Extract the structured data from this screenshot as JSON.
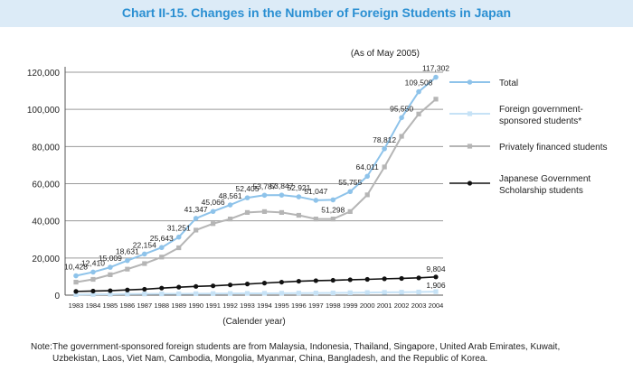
{
  "title": "Chart II-15. Changes in the Number of Foreign Students in Japan",
  "note": {
    "label": "Note:",
    "text": "The government-sponsored foreign students are from Malaysia, Indonesia, Thailand, Singapore, United Arab Emirates, Kuwait, Uzbekistan, Laos, Viet Nam, Cambodia, Mongolia, Myanmar, China, Bangladesh, and the Republic of Korea."
  },
  "colors": {
    "total": "#8ec3ea",
    "foreign_gov": "#c6e2f6",
    "private": "#b5b5b5",
    "japanese_gov": "#111111",
    "title": "#2a8fd2",
    "title_bg": "#dcebf7"
  },
  "chart_data": {
    "type": "line",
    "subtitle": "(As of May 2005)",
    "xlabel": "(Calender year)",
    "ylabel": "",
    "ylim": [
      0,
      120000
    ],
    "yticks": [
      "0",
      "20,000",
      "40,000",
      "60,000",
      "80,000",
      "100,000",
      "120,000"
    ],
    "x": [
      "1983",
      "1984",
      "1985",
      "1986",
      "1987",
      "1988",
      "1989",
      "1990",
      "1991",
      "1992",
      "1993",
      "1994",
      "1995",
      "1996",
      "1997",
      "1998",
      "1999",
      "2000",
      "2001",
      "2002",
      "2003",
      "2004"
    ],
    "grid": true,
    "legend_position": "right",
    "series": [
      {
        "key": "total",
        "name": "Total",
        "values": [
          10428,
          12410,
          15009,
          18631,
          22154,
          25643,
          31251,
          41347,
          45066,
          48561,
          52405,
          53787,
          53847,
          52921,
          51047,
          51298,
          55755,
          64011,
          78812,
          95550,
          109508,
          117302
        ],
        "labels": [
          "10,428",
          "12,410",
          "15,009",
          "18,631",
          "22,154",
          "25,643",
          "31,251",
          "41,347",
          "45,066",
          "48,561",
          "52,405",
          "53,787",
          "53,847",
          "52,921",
          "51,047",
          "51,298",
          "55,755",
          "64,011",
          "78,812",
          "95,550",
          "109,508",
          "117,302"
        ]
      },
      {
        "key": "foreign_gov",
        "name": "Foreign government-sponsored students*",
        "values": [
          300,
          400,
          500,
          600,
          650,
          700,
          750,
          800,
          850,
          900,
          950,
          1000,
          1050,
          1100,
          1150,
          1200,
          1300,
          1400,
          1500,
          1600,
          1700,
          1906
        ],
        "labels": [
          "",
          "",
          "",
          "",
          "",
          "",
          "",
          "",
          "",
          "",
          "",
          "",
          "",
          "",
          "",
          "",
          "",
          "",
          "",
          "",
          "",
          "1,906"
        ]
      },
      {
        "key": "private",
        "name": "Privately financed students",
        "values": [
          7000,
          8500,
          11000,
          14000,
          17000,
          20500,
          25500,
          35000,
          38500,
          41000,
          44500,
          45000,
          44500,
          43000,
          41000,
          41000,
          45000,
          54000,
          69000,
          85500,
          97500,
          105500
        ],
        "labels": []
      },
      {
        "key": "japanese_gov",
        "name": "Japanese Government Scholarship students",
        "values": [
          2000,
          2200,
          2400,
          2800,
          3200,
          3800,
          4300,
          4700,
          5000,
          5500,
          6000,
          6500,
          7000,
          7500,
          7800,
          8000,
          8300,
          8500,
          8800,
          9000,
          9300,
          9804
        ],
        "labels": [
          "",
          "",
          "",
          "",
          "",
          "",
          "",
          "",
          "",
          "",
          "",
          "",
          "",
          "",
          "",
          "",
          "",
          "",
          "",
          "",
          "",
          "9,804"
        ]
      }
    ]
  }
}
